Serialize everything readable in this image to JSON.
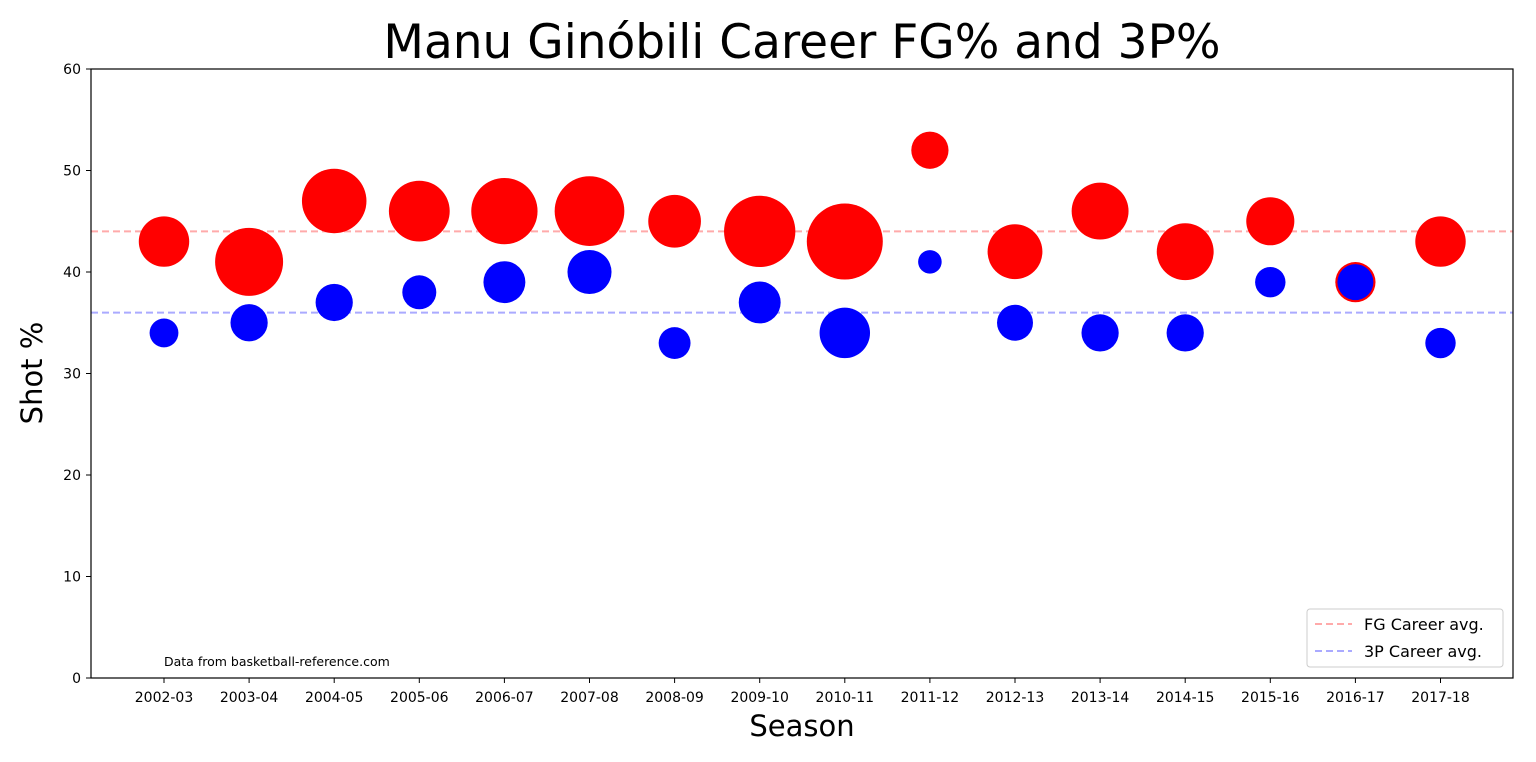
{
  "chart_data": {
    "type": "scatter",
    "title": "Manu Ginóbili Career FG% and 3P%",
    "xlabel": "Season",
    "ylabel": "Shot %",
    "ylim": [
      0,
      60
    ],
    "yticks": [
      0,
      10,
      20,
      30,
      40,
      50,
      60
    ],
    "grid": false,
    "legend_position": "bottom-right",
    "annotation": "Data from basketball-reference.com",
    "categories": [
      "2002-03",
      "2003-04",
      "2004-05",
      "2005-06",
      "2006-07",
      "2007-08",
      "2008-09",
      "2009-10",
      "2010-11",
      "2011-12",
      "2012-13",
      "2013-14",
      "2014-15",
      "2015-16",
      "2016-17",
      "2017-18"
    ],
    "series": [
      {
        "color": "#ff0000",
        "values": [
          43,
          41,
          47,
          46,
          46,
          46,
          45,
          44,
          43,
          52,
          42,
          46,
          42,
          45,
          39,
          43
        ],
        "relative_size": [
          0.55,
          1.0,
          0.9,
          0.8,
          0.95,
          1.05,
          0.6,
          1.1,
          1.25,
          0.3,
          0.65,
          0.7,
          0.7,
          0.5,
          0.35,
          0.55
        ]
      },
      {
        "color": "#0000ff",
        "values": [
          34,
          35,
          37,
          38,
          39,
          40,
          33,
          37,
          34,
          41,
          35,
          34,
          34,
          39,
          39,
          33
        ],
        "relative_size": [
          0.18,
          0.3,
          0.3,
          0.25,
          0.38,
          0.42,
          0.22,
          0.38,
          0.55,
          0.12,
          0.28,
          0.3,
          0.3,
          0.2,
          0.28,
          0.2
        ]
      }
    ],
    "reference_lines": [
      {
        "name": "FG Career avg.",
        "value": 44,
        "color": "#ffaaaa"
      },
      {
        "name": "3P Career avg.",
        "value": 36,
        "color": "#aaaaff"
      }
    ]
  }
}
